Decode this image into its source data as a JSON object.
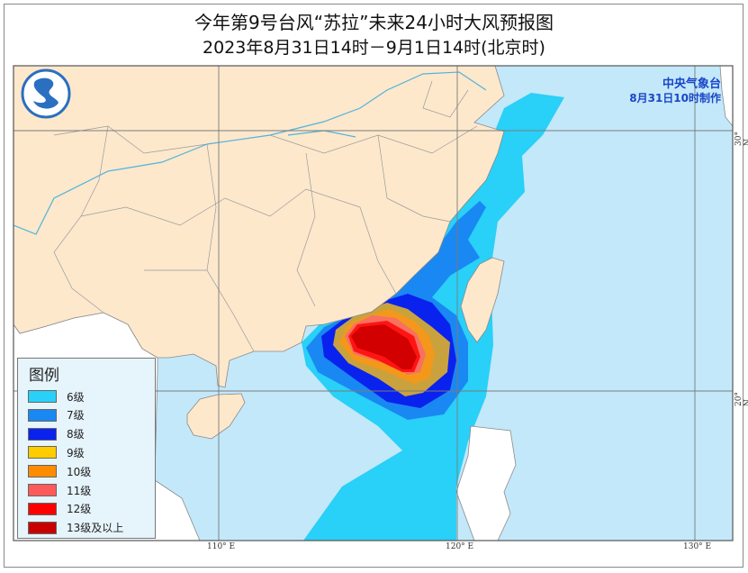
{
  "title": "今年第9号台风“苏拉”未来24小时大风预报图",
  "subtitle": "2023年8月31日14时－9月1日14时(北京时)",
  "agency": "中央气象台",
  "issued": "8月31日10时制作",
  "logo": "cma-logo",
  "colors": {
    "land": "#fde8cc",
    "foreign_land": "#ffffff",
    "sea": "#c3e8fa",
    "border": "#8a8a8a",
    "river": "#4fb3dc"
  },
  "legend": {
    "title": "图例",
    "items": [
      {
        "label": "6级",
        "color": "#29d0f7"
      },
      {
        "label": "7级",
        "color": "#1a88f2"
      },
      {
        "label": "8级",
        "color": "#0a22ee"
      },
      {
        "label": "9级",
        "color": "#ffcc00"
      },
      {
        "label": "10级",
        "color": "#ff8c00"
      },
      {
        "label": "11级",
        "color": "#ff5a5a"
      },
      {
        "label": "12级",
        "color": "#ff0000"
      },
      {
        "label": "13级及以上",
        "color": "#c80000"
      }
    ],
    "map_colors": [
      "#29d0f7",
      "#1a88f2",
      "#0a22ee",
      "#c9a23e",
      "#f3981a",
      "#f87060",
      "#ff1414",
      "#d20000"
    ]
  },
  "axes": {
    "lon": [
      "110° E",
      "120° E",
      "130° E"
    ],
    "lat": [
      "30° N",
      "20° N"
    ]
  }
}
